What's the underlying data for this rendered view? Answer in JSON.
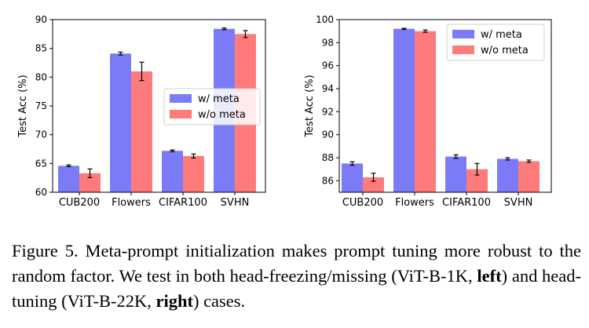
{
  "chart_data": [
    {
      "type": "bar",
      "panel": "left",
      "categories": [
        "CUB200",
        "Flowers",
        "CIFAR100",
        "SVHN"
      ],
      "series": [
        {
          "name": "w/ meta",
          "color": "#7b7bf7",
          "values": [
            64.6,
            84.1,
            67.2,
            88.4
          ],
          "errors": [
            0.15,
            0.25,
            0.15,
            0.15
          ]
        },
        {
          "name": "w/o meta",
          "color": "#ff7b7b",
          "values": [
            63.3,
            81.0,
            66.3,
            87.5
          ],
          "errors": [
            0.75,
            1.6,
            0.35,
            0.6
          ]
        }
      ],
      "ylabel": "Test Acc (%)",
      "ylim": [
        60,
        90
      ],
      "yticks": [
        60,
        65,
        70,
        75,
        80,
        85,
        90
      ],
      "legend": "center-right",
      "grid": false
    },
    {
      "type": "bar",
      "panel": "right",
      "categories": [
        "CUB200",
        "Flowers",
        "CIFAR100",
        "SVHN"
      ],
      "series": [
        {
          "name": "w/ meta",
          "color": "#7b7bf7",
          "values": [
            87.5,
            99.2,
            88.1,
            87.9
          ],
          "errors": [
            0.15,
            0.05,
            0.15,
            0.1
          ]
        },
        {
          "name": "w/o meta",
          "color": "#ff7b7b",
          "values": [
            86.3,
            99.0,
            87.0,
            87.7
          ],
          "errors": [
            0.35,
            0.1,
            0.5,
            0.1
          ]
        }
      ],
      "ylabel": "Test Acc (%)",
      "ylim": [
        85,
        100
      ],
      "yticks": [
        86,
        88,
        90,
        92,
        94,
        96,
        98,
        100
      ],
      "legend": "top-right",
      "grid": false
    }
  ],
  "caption": {
    "label": "Figure 5.",
    "text1": "Meta-prompt initialization makes prompt tuning more robust to the random factor. We test in both head-freezing/missing (ViT-B-1K, ",
    "bold1": "left",
    "text2": ") and head-tuning (ViT-B-22K, ",
    "bold2": "right",
    "text3": ") cases."
  }
}
